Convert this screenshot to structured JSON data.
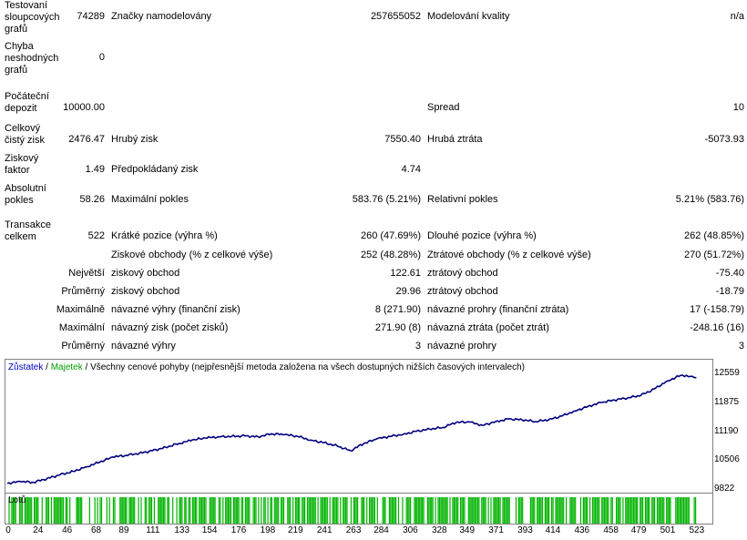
{
  "stats": {
    "rows": [
      {
        "label": "Testovaní sloupcových grafů",
        "value": "74289",
        "label2": "Značky namodelovány",
        "value2": "257655052",
        "label3": "Modelování kvality",
        "value3": "n/a"
      },
      {
        "label": "Chyba neshodných grafů",
        "value": "0"
      },
      {
        "label": "Počáteční depozit",
        "value": "10000.00",
        "label3": "Spread",
        "value3": "10"
      },
      {
        "label": "Celkový čistý zisk",
        "value": "2476.47",
        "label2": "Hrubý zisk",
        "value2": "7550.40",
        "label3": "Hrubá ztráta",
        "value3": "-5073.93"
      },
      {
        "label": "Ziskový faktor",
        "value": "1.49",
        "label2": "Předpokládaný zisk",
        "value2": "4.74"
      },
      {
        "label": "Absolutní pokles",
        "value": "58.26",
        "label2": "Maximální pokles",
        "value2": "583.76 (5.21%)",
        "label3": "Relativní pokles",
        "value3": "5.21% (583.76)"
      },
      {
        "label": "Transakce celkem",
        "value": "522",
        "label2": "Krátké pozice (výhra %)",
        "value2": "260 (47.69%)",
        "label3": "Dlouhé pozice (výhra %)",
        "value3": "262 (48.85%)"
      },
      {
        "label2": "Ziskové obchody (% z celkové výše)",
        "value2": "252 (48.28%)",
        "label3": "Ztrátové obchody (% z celkové výše)",
        "value3": "270 (51.72%)"
      },
      {
        "rowlabel": "Největší",
        "label2": "ziskový obchod",
        "value2": "122.61",
        "label3": "ztrátový obchod",
        "value3": "-75.40"
      },
      {
        "rowlabel": "Průměrný",
        "label2": "ziskový obchod",
        "value2": "29.96",
        "label3": "ztrátový obchod",
        "value3": "-18.79"
      },
      {
        "rowlabel": "Maximálně",
        "label2": "návazné výhry (finanční zisk)",
        "value2": "8 (271.90)",
        "label3": "návazné prohry (finanční ztráta)",
        "value3": "17 (-158.79)"
      },
      {
        "rowlabel": "Maximální",
        "label2": "návazný zisk (počet zisků)",
        "value2": "271.90 (8)",
        "label3": "návazná ztráta (počet ztrát)",
        "value3": "-248.16 (16)"
      },
      {
        "rowlabel": "Průměrný",
        "label2": "návazné výhry",
        "value2": "3",
        "label3": "návazné prohry",
        "value3": "3"
      }
    ]
  },
  "chart_caption": {
    "balance": "Zůstatek",
    "sep1": " / ",
    "equity": "Majetek",
    "sep2": " / ",
    "rest": "Všechny cenové pohyby (nejpřesnější metoda založena na všech dostupných nižších časových intervalech)"
  },
  "lots_caption": "Lotů",
  "colors": {
    "balance": "#00007f",
    "equity": "#00a000",
    "lots": "#00b400"
  },
  "chart_data": {
    "type": "line",
    "title": "",
    "xlabel": "",
    "ylabel": "",
    "ylim": [
      9822,
      12559
    ],
    "xlim": [
      0,
      530
    ],
    "y_ticks": [
      12559,
      11875,
      11190,
      10506,
      9822
    ],
    "x_ticks": [
      0,
      24,
      46,
      68,
      89,
      111,
      133,
      154,
      176,
      198,
      219,
      241,
      263,
      284,
      306,
      328,
      349,
      371,
      393,
      414,
      436,
      458,
      479,
      501,
      523
    ],
    "series": [
      {
        "name": "Zůstatek",
        "x": [
          0,
          10,
          20,
          30,
          40,
          50,
          60,
          70,
          80,
          90,
          100,
          110,
          120,
          130,
          140,
          150,
          160,
          170,
          180,
          190,
          200,
          210,
          220,
          230,
          240,
          250,
          260,
          270,
          280,
          290,
          300,
          310,
          320,
          330,
          340,
          350,
          360,
          370,
          380,
          390,
          400,
          410,
          420,
          430,
          440,
          450,
          460,
          470,
          480,
          490,
          500,
          510,
          522
        ],
        "y": [
          9980,
          10020,
          10000,
          10090,
          10180,
          10260,
          10370,
          10480,
          10600,
          10640,
          10690,
          10750,
          10830,
          10920,
          11000,
          11050,
          11080,
          11090,
          11100,
          11080,
          11150,
          11130,
          11090,
          11000,
          10940,
          10860,
          10750,
          10920,
          11030,
          11090,
          11140,
          11210,
          11260,
          11300,
          11420,
          11430,
          11350,
          11440,
          11500,
          11480,
          11440,
          11480,
          11570,
          11690,
          11800,
          11890,
          11950,
          12000,
          12060,
          12210,
          12400,
          12530,
          12480
        ]
      }
    ],
    "grid": false
  }
}
